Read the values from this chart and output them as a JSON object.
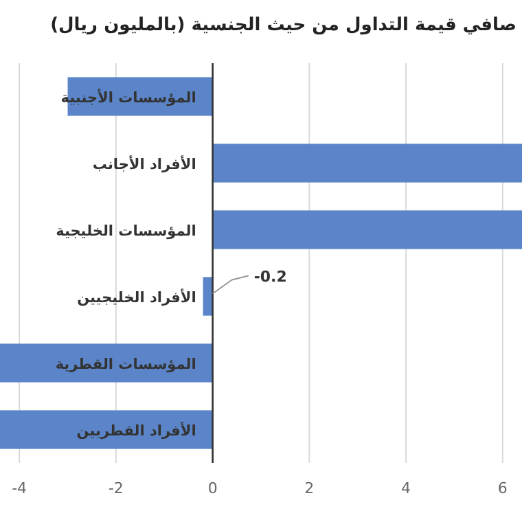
{
  "chart_data": {
    "type": "bar",
    "orientation": "horizontal",
    "title": "صافي قيمة التداول من حيث الجنسية (بالمليون ريال)",
    "categories": [
      "المؤسسات الأجنبية",
      "الأفراد الأجانب",
      "المؤسسات الخليجية",
      "الأفراد الخليجيين",
      "المؤسسات القطرية",
      "الأفراد القطريين"
    ],
    "values": [
      -3.0,
      6.4,
      6.4,
      -0.2,
      -4.4,
      -4.4
    ],
    "value_labels": [
      null,
      null,
      null,
      "-0.2",
      null,
      null
    ],
    "color": "#5b85c8",
    "xlim": [
      -4.4,
      6.4
    ],
    "xticks": [
      -4,
      -2,
      0,
      2,
      4,
      6
    ],
    "grid": "x"
  }
}
